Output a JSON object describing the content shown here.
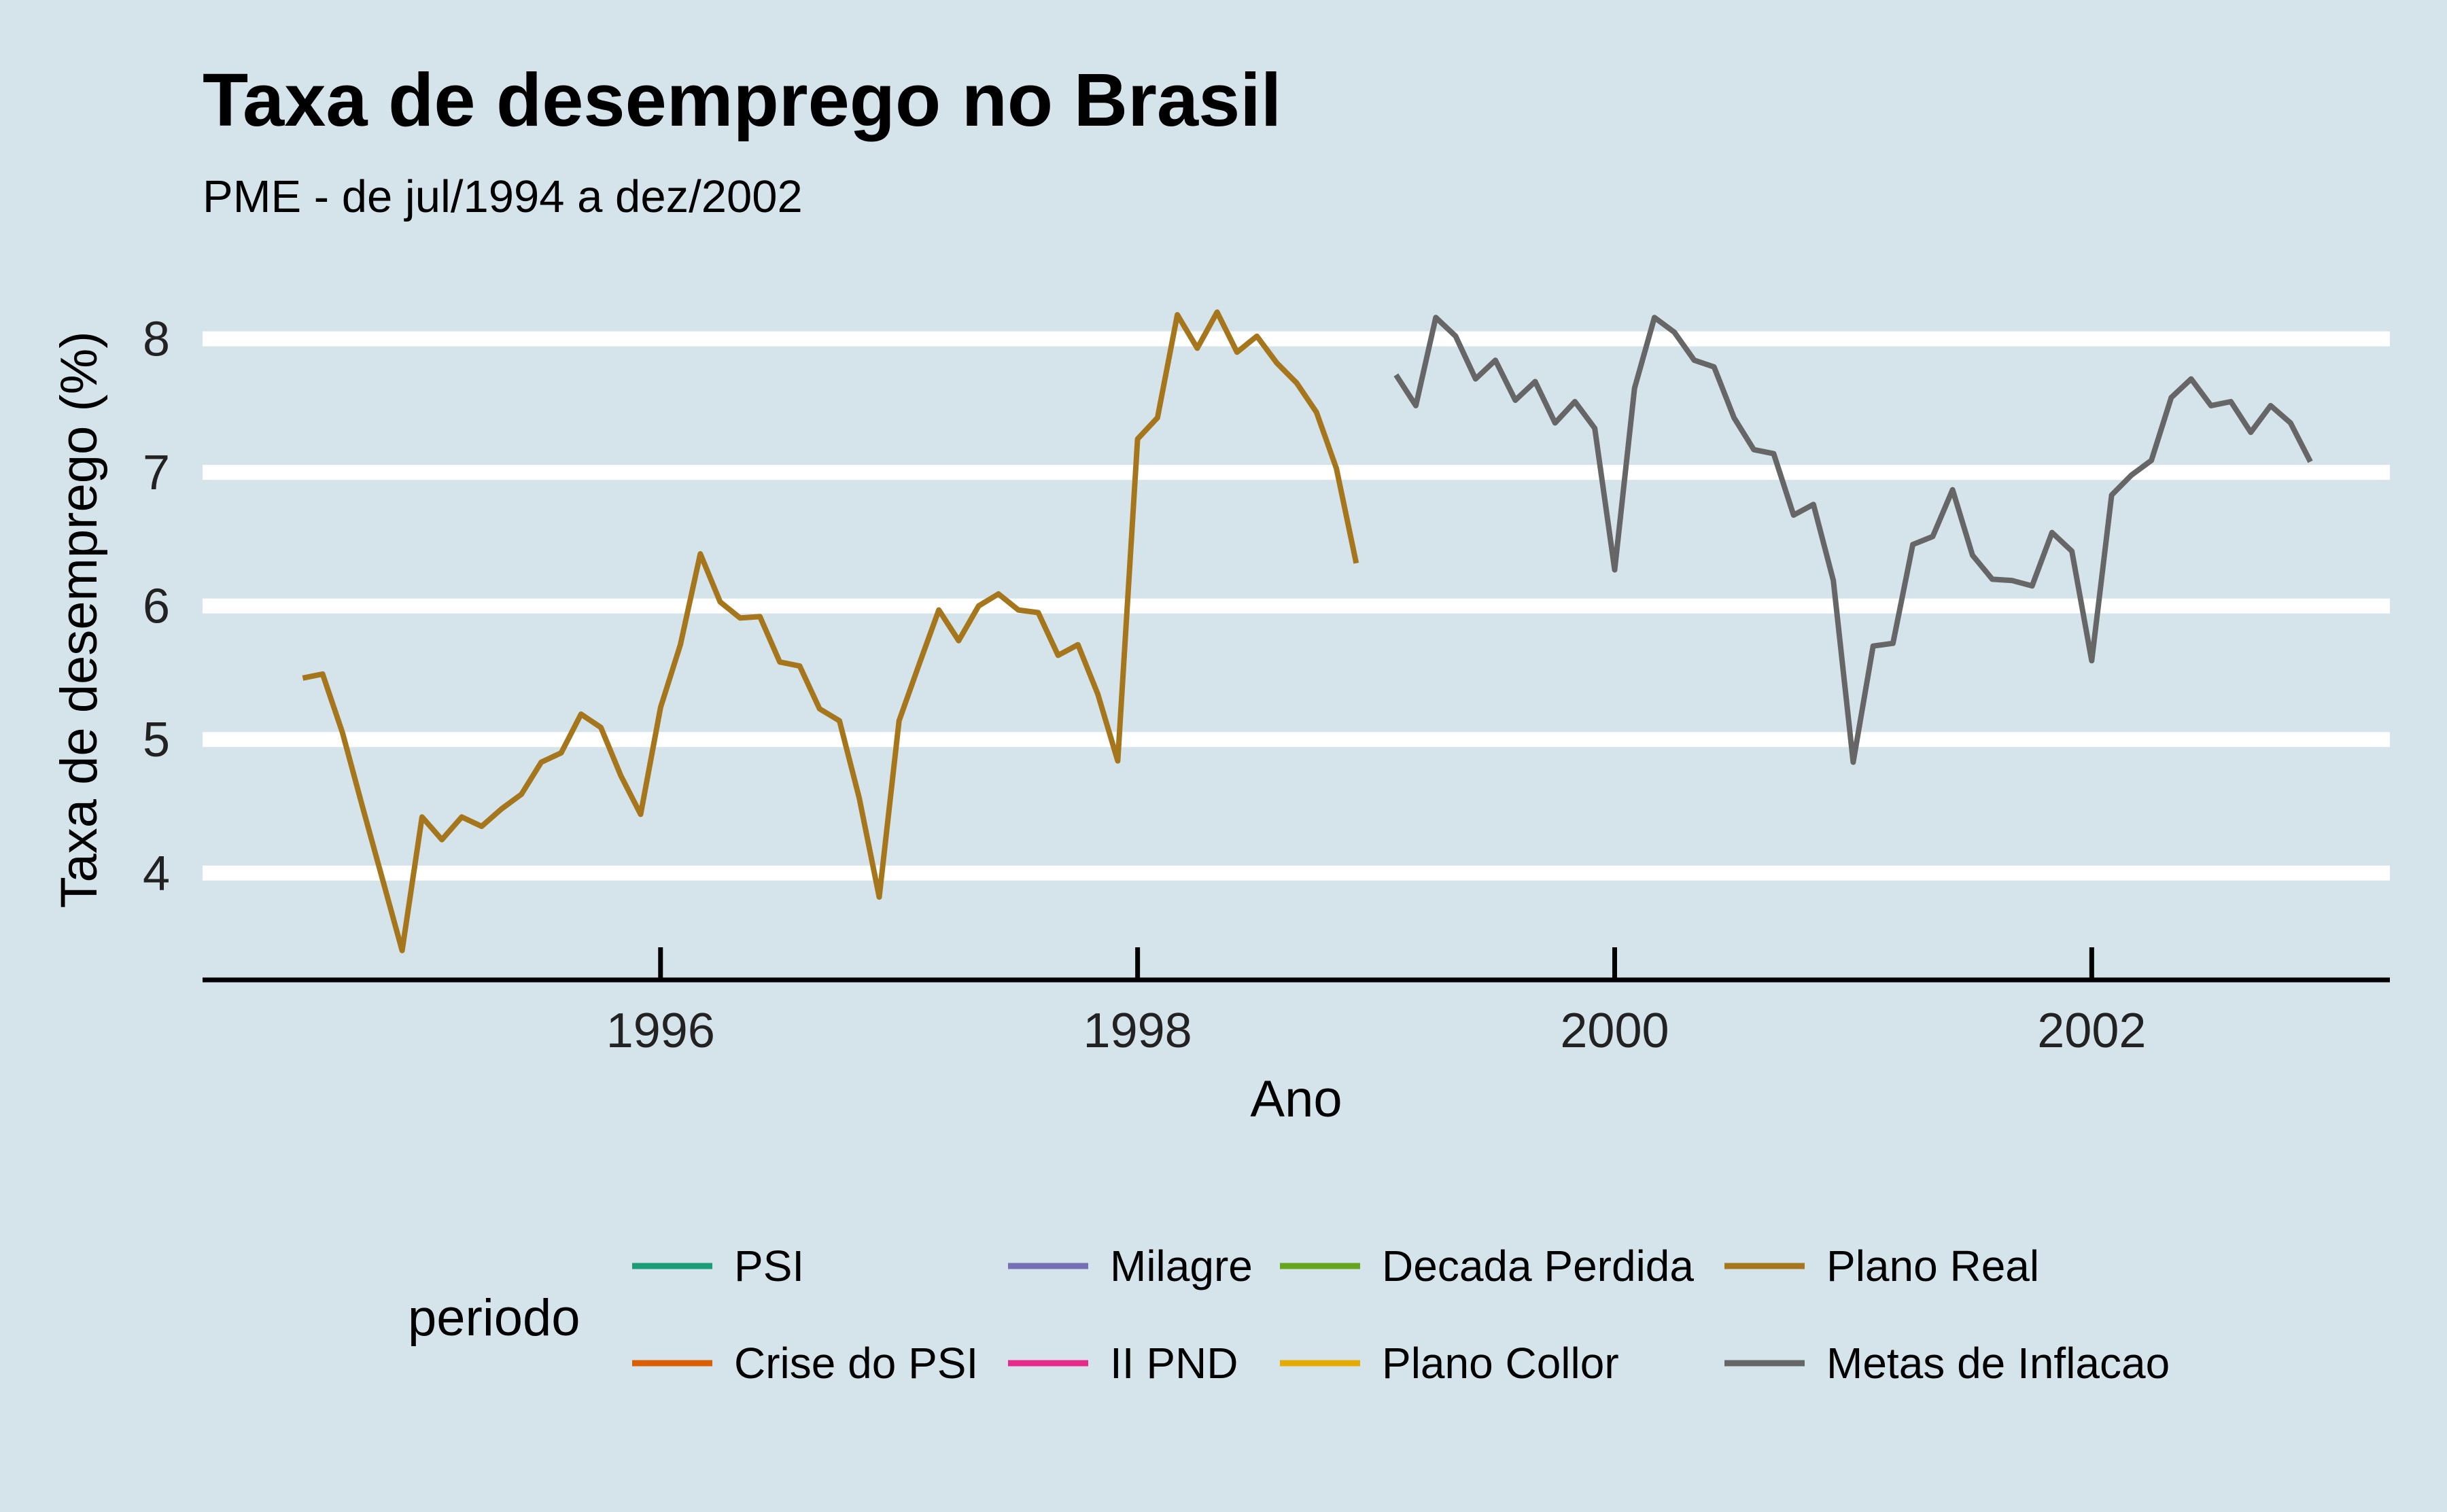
{
  "chart_data": {
    "type": "line",
    "title": "Taxa de desemprego no Brasil",
    "subtitle": "PME - de jul/1994 a dez/2002",
    "xlabel": "Ano",
    "ylabel": "Taxa de desemprego (%)",
    "xlim": [
      1994.08,
      2003.25
    ],
    "ylim": [
      3.2,
      8.4
    ],
    "x_ticks": [
      1996,
      1998,
      2000,
      2002
    ],
    "x_tick_labels": [
      "1996",
      "1998",
      "2000",
      "2002"
    ],
    "y_ticks": [
      4,
      5,
      6,
      7,
      8
    ],
    "y_tick_labels": [
      "4",
      "5",
      "6",
      "7",
      "8"
    ],
    "grid": "horizontal major lines",
    "legend": {
      "position": "bottom",
      "title": "periodo",
      "entries": [
        {
          "label": "PSI",
          "color": "#1b9e77"
        },
        {
          "label": "Crise do PSI",
          "color": "#d95f02"
        },
        {
          "label": "Milagre",
          "color": "#7570b3"
        },
        {
          "label": "II PND",
          "color": "#e7298a"
        },
        {
          "label": "Decada Perdida",
          "color": "#66a61e"
        },
        {
          "label": "Plano Collor",
          "color": "#e6ab02"
        },
        {
          "label": "Plano Real",
          "color": "#a6761d"
        },
        {
          "label": "Metas de Inflacao",
          "color": "#666666"
        }
      ]
    },
    "series": [
      {
        "name": "Plano Real",
        "color": "#a6761d",
        "start": "1994-07",
        "values": [
          5.46,
          5.49,
          5.05,
          4.5,
          3.96,
          3.42,
          4.42,
          4.25,
          4.42,
          4.35,
          4.48,
          4.59,
          4.83,
          4.9,
          5.19,
          5.09,
          4.73,
          4.44,
          5.24,
          5.71,
          6.39,
          6.03,
          5.91,
          5.92,
          5.58,
          5.55,
          5.23,
          5.14,
          4.56,
          3.82,
          5.14,
          5.56,
          5.97,
          5.74,
          6.0,
          6.09,
          5.97,
          5.95,
          5.63,
          5.71,
          5.34,
          4.84,
          7.25,
          7.41,
          8.18,
          7.93,
          8.2,
          7.9,
          8.02,
          7.82,
          7.67,
          7.45,
          7.03,
          6.32
        ]
      },
      {
        "name": "Metas de Inflacao",
        "color": "#666666",
        "start": "1999-02",
        "values": [
          7.73,
          7.5,
          8.16,
          8.02,
          7.7,
          7.84,
          7.54,
          7.68,
          7.37,
          7.53,
          7.33,
          6.27,
          7.63,
          8.16,
          8.05,
          7.84,
          7.79,
          7.41,
          7.17,
          7.14,
          6.68,
          6.76,
          6.19,
          4.83,
          5.7,
          5.72,
          6.46,
          6.52,
          6.87,
          6.38,
          6.2,
          6.19,
          6.15,
          6.55,
          6.41,
          5.59,
          6.83,
          6.98,
          7.09,
          7.56,
          7.7,
          7.5,
          7.53,
          7.3,
          7.5,
          7.37,
          7.08
        ]
      }
    ]
  }
}
